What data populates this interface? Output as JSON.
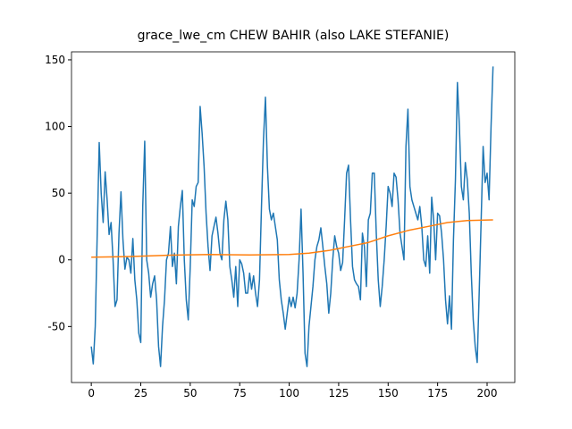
{
  "chart_data": {
    "type": "line",
    "title": "grace_lwe_cm CHEW BAHIR (also LAKE STEFANIE)",
    "xlim": [
      -10,
      214
    ],
    "ylim": [
      -92,
      156
    ],
    "xticks": [
      0,
      25,
      50,
      75,
      100,
      125,
      150,
      175,
      200
    ],
    "yticks": [
      -50,
      0,
      50,
      100,
      150
    ],
    "x": [
      0,
      1,
      2,
      3,
      4,
      5,
      6,
      7,
      8,
      9,
      10,
      11,
      12,
      13,
      14,
      15,
      16,
      17,
      18,
      19,
      20,
      21,
      22,
      23,
      24,
      25,
      26,
      27,
      28,
      29,
      30,
      31,
      32,
      33,
      34,
      35,
      36,
      37,
      38,
      39,
      40,
      41,
      42,
      43,
      44,
      45,
      46,
      47,
      48,
      49,
      50,
      51,
      52,
      53,
      54,
      55,
      56,
      57,
      58,
      59,
      60,
      61,
      62,
      63,
      64,
      65,
      66,
      67,
      68,
      69,
      70,
      71,
      72,
      73,
      74,
      75,
      76,
      77,
      78,
      79,
      80,
      81,
      82,
      83,
      84,
      85,
      86,
      87,
      88,
      89,
      90,
      91,
      92,
      93,
      94,
      95,
      96,
      97,
      98,
      99,
      100,
      101,
      102,
      103,
      104,
      105,
      106,
      107,
      108,
      109,
      110,
      111,
      112,
      113,
      114,
      115,
      116,
      117,
      118,
      119,
      120,
      121,
      122,
      123,
      124,
      125,
      126,
      127,
      128,
      129,
      130,
      131,
      132,
      133,
      134,
      135,
      136,
      137,
      138,
      139,
      140,
      141,
      142,
      143,
      144,
      145,
      146,
      147,
      148,
      149,
      150,
      151,
      152,
      153,
      154,
      155,
      156,
      157,
      158,
      159,
      160,
      161,
      162,
      163,
      164,
      165,
      166,
      167,
      168,
      169,
      170,
      171,
      172,
      173,
      174,
      175,
      176,
      177,
      178,
      179,
      180,
      181,
      182,
      183,
      184,
      185,
      186,
      187,
      188,
      189,
      190,
      191,
      192,
      193,
      194,
      195,
      196,
      197,
      198,
      199,
      200,
      201,
      202,
      203
    ],
    "series": [
      {
        "color": "#1f77b4",
        "values": [
          -65,
          -78,
          -50,
          20,
          88,
          50,
          28,
          66,
          45,
          19,
          28,
          0,
          -35,
          -30,
          20,
          51,
          15,
          -7,
          2,
          0,
          -10,
          16,
          -15,
          -30,
          -55,
          -62,
          40,
          89,
          0,
          -10,
          -28,
          -18,
          -12,
          -30,
          -65,
          -80,
          -50,
          -30,
          0,
          5,
          25,
          -5,
          5,
          -18,
          25,
          40,
          52,
          0,
          -30,
          -45,
          -5,
          45,
          40,
          55,
          58,
          115,
          95,
          70,
          35,
          10,
          -8,
          18,
          25,
          32,
          20,
          5,
          0,
          30,
          44,
          30,
          -5,
          -15,
          -28,
          -5,
          -35,
          0,
          -3,
          -10,
          -25,
          -25,
          -10,
          -22,
          -12,
          -25,
          -35,
          -15,
          40,
          90,
          122,
          70,
          38,
          30,
          35,
          25,
          15,
          -15,
          -30,
          -40,
          -52,
          -40,
          -28,
          -35,
          -28,
          -36,
          -25,
          0,
          38,
          -10,
          -70,
          -80,
          -50,
          -35,
          -20,
          0,
          10,
          15,
          24,
          10,
          -5,
          -18,
          -40,
          -25,
          0,
          18,
          10,
          5,
          -8,
          -2,
          30,
          65,
          71,
          30,
          -5,
          -15,
          -18,
          -20,
          -30,
          20,
          10,
          -20,
          30,
          35,
          65,
          65,
          20,
          -15,
          -35,
          -20,
          0,
          25,
          55,
          50,
          40,
          65,
          62,
          45,
          20,
          10,
          0,
          85,
          113,
          55,
          45,
          40,
          35,
          30,
          40,
          25,
          0,
          -5,
          18,
          -10,
          47,
          30,
          0,
          35,
          33,
          20,
          0,
          -30,
          -48,
          -27,
          -52,
          15,
          60,
          133,
          100,
          55,
          45,
          73,
          60,
          35,
          -10,
          -45,
          -65,
          -77,
          -25,
          30,
          85,
          58,
          65,
          45,
          100,
          145
        ]
      },
      {
        "color": "#ff7f0e",
        "x": [
          0,
          20,
          40,
          60,
          80,
          100,
          110,
          120,
          130,
          140,
          150,
          160,
          170,
          180,
          190,
          203
        ],
        "values": [
          2,
          2.5,
          3.5,
          4,
          3.7,
          4,
          5,
          7,
          10,
          13,
          18,
          22,
          25,
          28,
          29.5,
          30
        ]
      }
    ]
  }
}
